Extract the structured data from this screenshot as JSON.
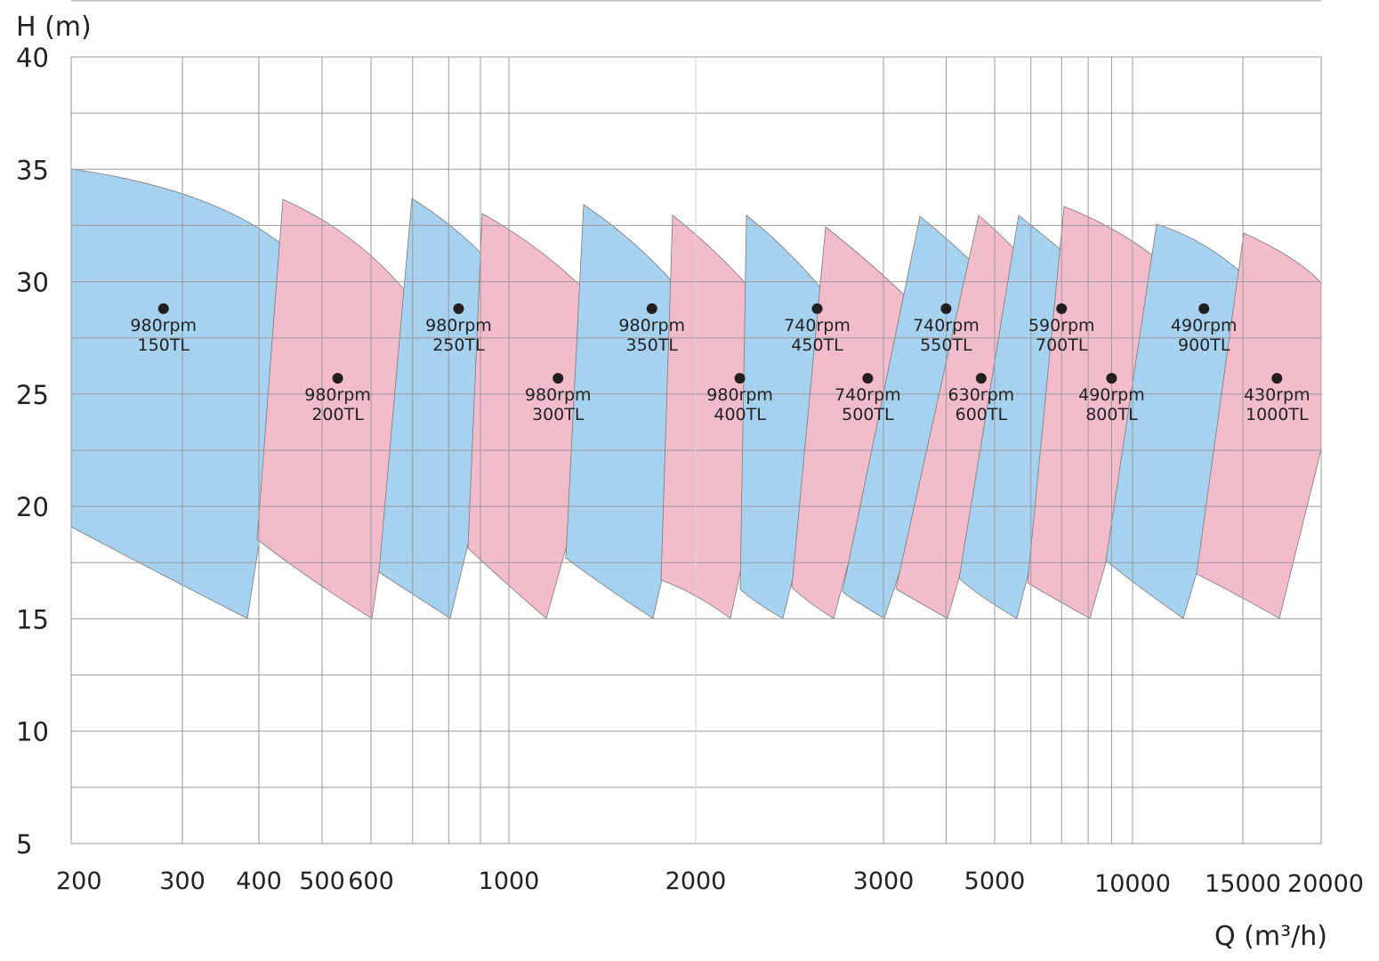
{
  "chart_data": {
    "type": "area",
    "title": "",
    "ylabel": "H (m)",
    "xlabel": "Q (m³/h)",
    "ylim": [
      5,
      40
    ],
    "y_ticks": [
      5,
      10,
      15,
      20,
      25,
      30,
      35,
      40
    ],
    "x_scale": "log",
    "x_ticks": [
      "200",
      "300",
      "400",
      "500",
      "600",
      "1000",
      "2000",
      "3000",
      "5000",
      "10000",
      "15000",
      "20000"
    ],
    "grid": true,
    "colors": {
      "blue": "#a6d1ef",
      "pink": "#f2bccb",
      "grid": "#9a9a9a",
      "dot": "#231f20"
    },
    "series": [
      {
        "speed": "980rpm",
        "model": "150TL",
        "color": "blue",
        "point": [
          280,
          28.8
        ]
      },
      {
        "speed": "980rpm",
        "model": "200TL",
        "color": "pink",
        "point": [
          530,
          25.7
        ]
      },
      {
        "speed": "980rpm",
        "model": "250TL",
        "color": "blue",
        "point": [
          830,
          28.8
        ]
      },
      {
        "speed": "980rpm",
        "model": "300TL",
        "color": "pink",
        "point": [
          1200,
          25.7
        ]
      },
      {
        "speed": "980rpm",
        "model": "350TL",
        "color": "blue",
        "point": [
          1700,
          28.8
        ]
      },
      {
        "speed": "980rpm",
        "model": "400TL",
        "color": "pink",
        "point": [
          2200,
          25.7
        ]
      },
      {
        "speed": "740rpm",
        "model": "450TL",
        "color": "blue",
        "point": [
          2600,
          28.8
        ]
      },
      {
        "speed": "740rpm",
        "model": "500TL",
        "color": "pink",
        "point": [
          2900,
          25.7
        ]
      },
      {
        "speed": "740rpm",
        "model": "550TL",
        "color": "blue",
        "point": [
          4000,
          28.8
        ]
      },
      {
        "speed": "630rpm",
        "model": "600TL",
        "color": "pink",
        "point": [
          4700,
          25.7
        ]
      },
      {
        "speed": "590rpm",
        "model": "700TL",
        "color": "blue",
        "point": [
          7000,
          28.8
        ]
      },
      {
        "speed": "490rpm",
        "model": "800TL",
        "color": "pink",
        "point": [
          9000,
          25.7
        ]
      },
      {
        "speed": "490rpm",
        "model": "900TL",
        "color": "blue",
        "point": [
          13000,
          28.8
        ]
      },
      {
        "speed": "430rpm",
        "model": "1000TL",
        "color": "pink",
        "point": [
          17000,
          25.7
        ]
      }
    ]
  }
}
